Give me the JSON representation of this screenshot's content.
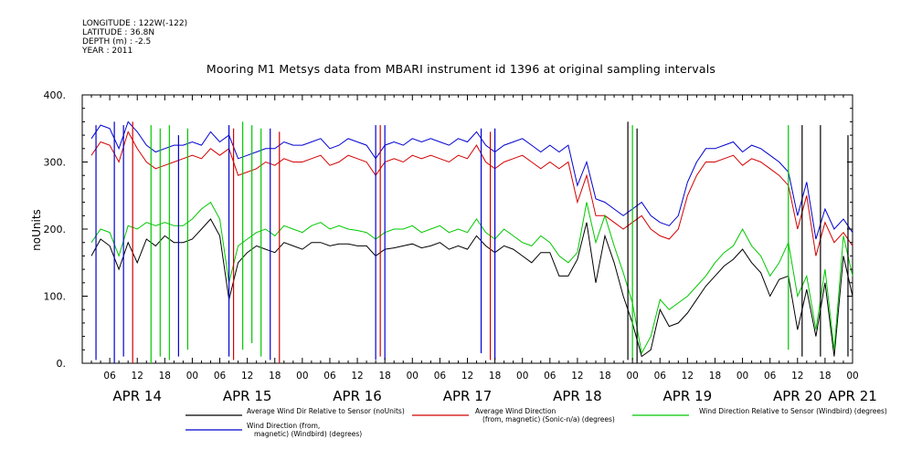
{
  "metadata": {
    "longitude": "LONGITUDE : 122W(-122)",
    "latitude": "LATITUDE : 36.8N",
    "depth": "DEPTH (m) : -2.5",
    "year": "YEAR : 2011"
  },
  "chart_data": {
    "type": "line",
    "title": "Mooring M1 Metsys data from MBARI instrument id 1396 at original sampling intervals",
    "ylabel": "noUnits",
    "xlabel": "",
    "ylim": [
      0,
      400
    ],
    "yticks": [
      0,
      100,
      200,
      300,
      400
    ],
    "ytick_labels": [
      "0.",
      "100.",
      "200.",
      "300.",
      "400."
    ],
    "xlim_hours": [
      -12,
      156
    ],
    "hour_tick_labels": [
      "06",
      "12",
      "18",
      "00",
      "06",
      "12",
      "18",
      "00",
      "06",
      "12",
      "18",
      "00",
      "06",
      "12",
      "18",
      "00",
      "06",
      "12",
      "18",
      "00",
      "06",
      "12",
      "18",
      "00",
      "06",
      "12",
      "18",
      "00"
    ],
    "day_labels": [
      {
        "label": "APR 14",
        "hour": 0
      },
      {
        "label": "APR 15",
        "hour": 24
      },
      {
        "label": "APR 16",
        "hour": 48
      },
      {
        "label": "APR 17",
        "hour": 72
      },
      {
        "label": "APR 18",
        "hour": 96
      },
      {
        "label": "APR 19",
        "hour": 120
      },
      {
        "label": "APR 20",
        "hour": 144
      },
      {
        "label": "APR 21",
        "hour": 156
      }
    ],
    "grid": false,
    "legend_position": "bottom",
    "series": [
      {
        "name": "Average Wind Dir Relative to Sensor (noUnits)",
        "color": "#000000",
        "x": [
          -10,
          -8,
          -6,
          -4,
          -2,
          0,
          2,
          4,
          6,
          8,
          10,
          12,
          14,
          16,
          18,
          20,
          22,
          24,
          26,
          28,
          30,
          32,
          34,
          36,
          38,
          40,
          42,
          44,
          46,
          48,
          50,
          52,
          54,
          56,
          58,
          60,
          62,
          64,
          66,
          68,
          70,
          72,
          74,
          76,
          78,
          80,
          82,
          84,
          86,
          88,
          90,
          92,
          94,
          96,
          98,
          100,
          102,
          104,
          106,
          108,
          110,
          112,
          114,
          116,
          118,
          120,
          122,
          124,
          126,
          128,
          130,
          132,
          134,
          136,
          138,
          140,
          142,
          144,
          146,
          148,
          150,
          152,
          154,
          156
        ],
        "y": [
          160,
          185,
          175,
          140,
          180,
          150,
          185,
          175,
          190,
          180,
          180,
          185,
          200,
          215,
          190,
          95,
          150,
          165,
          175,
          170,
          165,
          180,
          175,
          170,
          180,
          180,
          175,
          178,
          178,
          175,
          175,
          160,
          170,
          172,
          175,
          178,
          172,
          175,
          180,
          170,
          175,
          170,
          190,
          175,
          165,
          175,
          170,
          160,
          150,
          165,
          165,
          130,
          130,
          155,
          210,
          120,
          190,
          150,
          100,
          60,
          10,
          20,
          80,
          55,
          60,
          75,
          95,
          115,
          130,
          145,
          155,
          170,
          150,
          135,
          100,
          125,
          130,
          50,
          110,
          40,
          120,
          10,
          160,
          100
        ]
      },
      {
        "name": "Average Wind Direction (from, magnetic) (Sonic-n/a) (degrees)",
        "color": "#d40000",
        "x": [
          -10,
          -8,
          -6,
          -4,
          -2,
          0,
          2,
          4,
          6,
          8,
          10,
          12,
          14,
          16,
          18,
          20,
          22,
          24,
          26,
          28,
          30,
          32,
          34,
          36,
          38,
          40,
          42,
          44,
          46,
          48,
          50,
          52,
          54,
          56,
          58,
          60,
          62,
          64,
          66,
          68,
          70,
          72,
          74,
          76,
          78,
          80,
          82,
          84,
          86,
          88,
          90,
          92,
          94,
          96,
          98,
          100,
          102,
          104,
          106,
          108,
          110,
          112,
          114,
          116,
          118,
          120,
          122,
          124,
          126,
          128,
          130,
          132,
          134,
          136,
          138,
          140,
          142,
          144,
          146,
          148,
          150,
          152,
          154,
          156
        ],
        "y": [
          310,
          330,
          325,
          300,
          345,
          320,
          300,
          290,
          295,
          300,
          305,
          310,
          305,
          320,
          310,
          320,
          280,
          285,
          290,
          300,
          295,
          305,
          300,
          300,
          305,
          310,
          295,
          300,
          310,
          305,
          300,
          280,
          300,
          305,
          300,
          310,
          305,
          310,
          305,
          300,
          310,
          305,
          325,
          300,
          290,
          300,
          305,
          310,
          300,
          290,
          300,
          290,
          300,
          240,
          280,
          220,
          220,
          210,
          200,
          210,
          220,
          200,
          190,
          185,
          200,
          250,
          280,
          300,
          300,
          305,
          310,
          295,
          305,
          300,
          290,
          280,
          265,
          200,
          250,
          160,
          210,
          180,
          195,
          175
        ]
      },
      {
        "name": "Wind Direction Relative to Sensor (Windbird) (degrees)",
        "color": "#00c800",
        "x": [
          -10,
          -8,
          -6,
          -4,
          -2,
          0,
          2,
          4,
          6,
          8,
          10,
          12,
          14,
          16,
          18,
          20,
          22,
          24,
          26,
          28,
          30,
          32,
          34,
          36,
          38,
          40,
          42,
          44,
          46,
          48,
          50,
          52,
          54,
          56,
          58,
          60,
          62,
          64,
          66,
          68,
          70,
          72,
          74,
          76,
          78,
          80,
          82,
          84,
          86,
          88,
          90,
          92,
          94,
          96,
          98,
          100,
          102,
          104,
          106,
          108,
          110,
          112,
          114,
          116,
          118,
          120,
          122,
          124,
          126,
          128,
          130,
          132,
          134,
          136,
          138,
          140,
          142,
          144,
          146,
          148,
          150,
          152,
          154,
          156
        ],
        "y": [
          180,
          200,
          195,
          160,
          205,
          200,
          210,
          205,
          210,
          205,
          205,
          215,
          230,
          240,
          215,
          120,
          175,
          185,
          195,
          200,
          190,
          205,
          200,
          195,
          205,
          210,
          200,
          205,
          200,
          198,
          195,
          185,
          195,
          200,
          200,
          205,
          195,
          200,
          205,
          195,
          200,
          195,
          215,
          195,
          185,
          200,
          190,
          180,
          175,
          190,
          180,
          160,
          150,
          165,
          240,
          180,
          220,
          175,
          135,
          90,
          15,
          40,
          95,
          80,
          90,
          100,
          115,
          130,
          150,
          165,
          175,
          200,
          175,
          160,
          130,
          150,
          180,
          100,
          130,
          50,
          140,
          20,
          190,
          130
        ]
      },
      {
        "name": "Wind Direction (from, magnetic) (Windbird) (degrees)",
        "color": "#0000d0",
        "x": [
          -10,
          -8,
          -6,
          -4,
          -2,
          0,
          2,
          4,
          6,
          8,
          10,
          12,
          14,
          16,
          18,
          20,
          22,
          24,
          26,
          28,
          30,
          32,
          34,
          36,
          38,
          40,
          42,
          44,
          46,
          48,
          50,
          52,
          54,
          56,
          58,
          60,
          62,
          64,
          66,
          68,
          70,
          72,
          74,
          76,
          78,
          80,
          82,
          84,
          86,
          88,
          90,
          92,
          94,
          96,
          98,
          100,
          102,
          104,
          106,
          108,
          110,
          112,
          114,
          116,
          118,
          120,
          122,
          124,
          126,
          128,
          130,
          132,
          134,
          136,
          138,
          140,
          142,
          144,
          146,
          148,
          150,
          152,
          154,
          156
        ],
        "y": [
          335,
          355,
          350,
          320,
          360,
          345,
          325,
          315,
          320,
          325,
          325,
          330,
          325,
          345,
          330,
          340,
          305,
          310,
          315,
          320,
          320,
          330,
          325,
          325,
          330,
          335,
          320,
          325,
          335,
          330,
          325,
          305,
          325,
          330,
          325,
          335,
          330,
          335,
          330,
          325,
          335,
          330,
          345,
          325,
          315,
          325,
          330,
          335,
          325,
          315,
          325,
          315,
          325,
          265,
          300,
          245,
          240,
          230,
          220,
          230,
          240,
          220,
          210,
          205,
          220,
          270,
          300,
          320,
          320,
          325,
          330,
          315,
          325,
          320,
          310,
          300,
          285,
          220,
          270,
          185,
          230,
          200,
          215,
          195
        ]
      }
    ],
    "vertical_spikes": [
      {
        "series": 3,
        "hour": -9,
        "from": 5,
        "to": 355
      },
      {
        "series": 3,
        "hour": -5,
        "from": 0,
        "to": 360
      },
      {
        "series": 3,
        "hour": -3,
        "from": 10,
        "to": 355
      },
      {
        "series": 1,
        "hour": -1,
        "from": 0,
        "to": 360
      },
      {
        "series": 2,
        "hour": 3,
        "from": 0,
        "to": 355
      },
      {
        "series": 2,
        "hour": 5,
        "from": 10,
        "to": 350
      },
      {
        "series": 2,
        "hour": 7,
        "from": 5,
        "to": 355
      },
      {
        "series": 3,
        "hour": 9,
        "from": 10,
        "to": 340
      },
      {
        "series": 2,
        "hour": 11,
        "from": 20,
        "to": 350
      },
      {
        "series": 3,
        "hour": 20,
        "from": 10,
        "to": 355
      },
      {
        "series": 1,
        "hour": 21,
        "from": 5,
        "to": 350
      },
      {
        "series": 2,
        "hour": 23,
        "from": 20,
        "to": 360
      },
      {
        "series": 2,
        "hour": 25,
        "from": 30,
        "to": 355
      },
      {
        "series": 2,
        "hour": 27,
        "from": 10,
        "to": 350
      },
      {
        "series": 3,
        "hour": 29,
        "from": 5,
        "to": 350
      },
      {
        "series": 1,
        "hour": 31,
        "from": 0,
        "to": 345
      },
      {
        "series": 3,
        "hour": 52,
        "from": 5,
        "to": 355
      },
      {
        "series": 1,
        "hour": 53,
        "from": 10,
        "to": 355
      },
      {
        "series": 3,
        "hour": 54,
        "from": 5,
        "to": 355
      },
      {
        "series": 3,
        "hour": 75,
        "from": 15,
        "to": 350
      },
      {
        "series": 1,
        "hour": 77,
        "from": 5,
        "to": 345
      },
      {
        "series": 3,
        "hour": 78,
        "from": 5,
        "to": 350
      },
      {
        "series": 0,
        "hour": 107,
        "from": 5,
        "to": 360
      },
      {
        "series": 2,
        "hour": 108,
        "from": 5,
        "to": 355
      },
      {
        "series": 0,
        "hour": 109,
        "from": 0,
        "to": 350
      },
      {
        "series": 2,
        "hour": 142,
        "from": 20,
        "to": 355
      },
      {
        "series": 0,
        "hour": 145,
        "from": 10,
        "to": 355
      },
      {
        "series": 0,
        "hour": 149,
        "from": 10,
        "to": 355
      },
      {
        "series": 0,
        "hour": 155,
        "from": 10,
        "to": 340
      }
    ]
  }
}
